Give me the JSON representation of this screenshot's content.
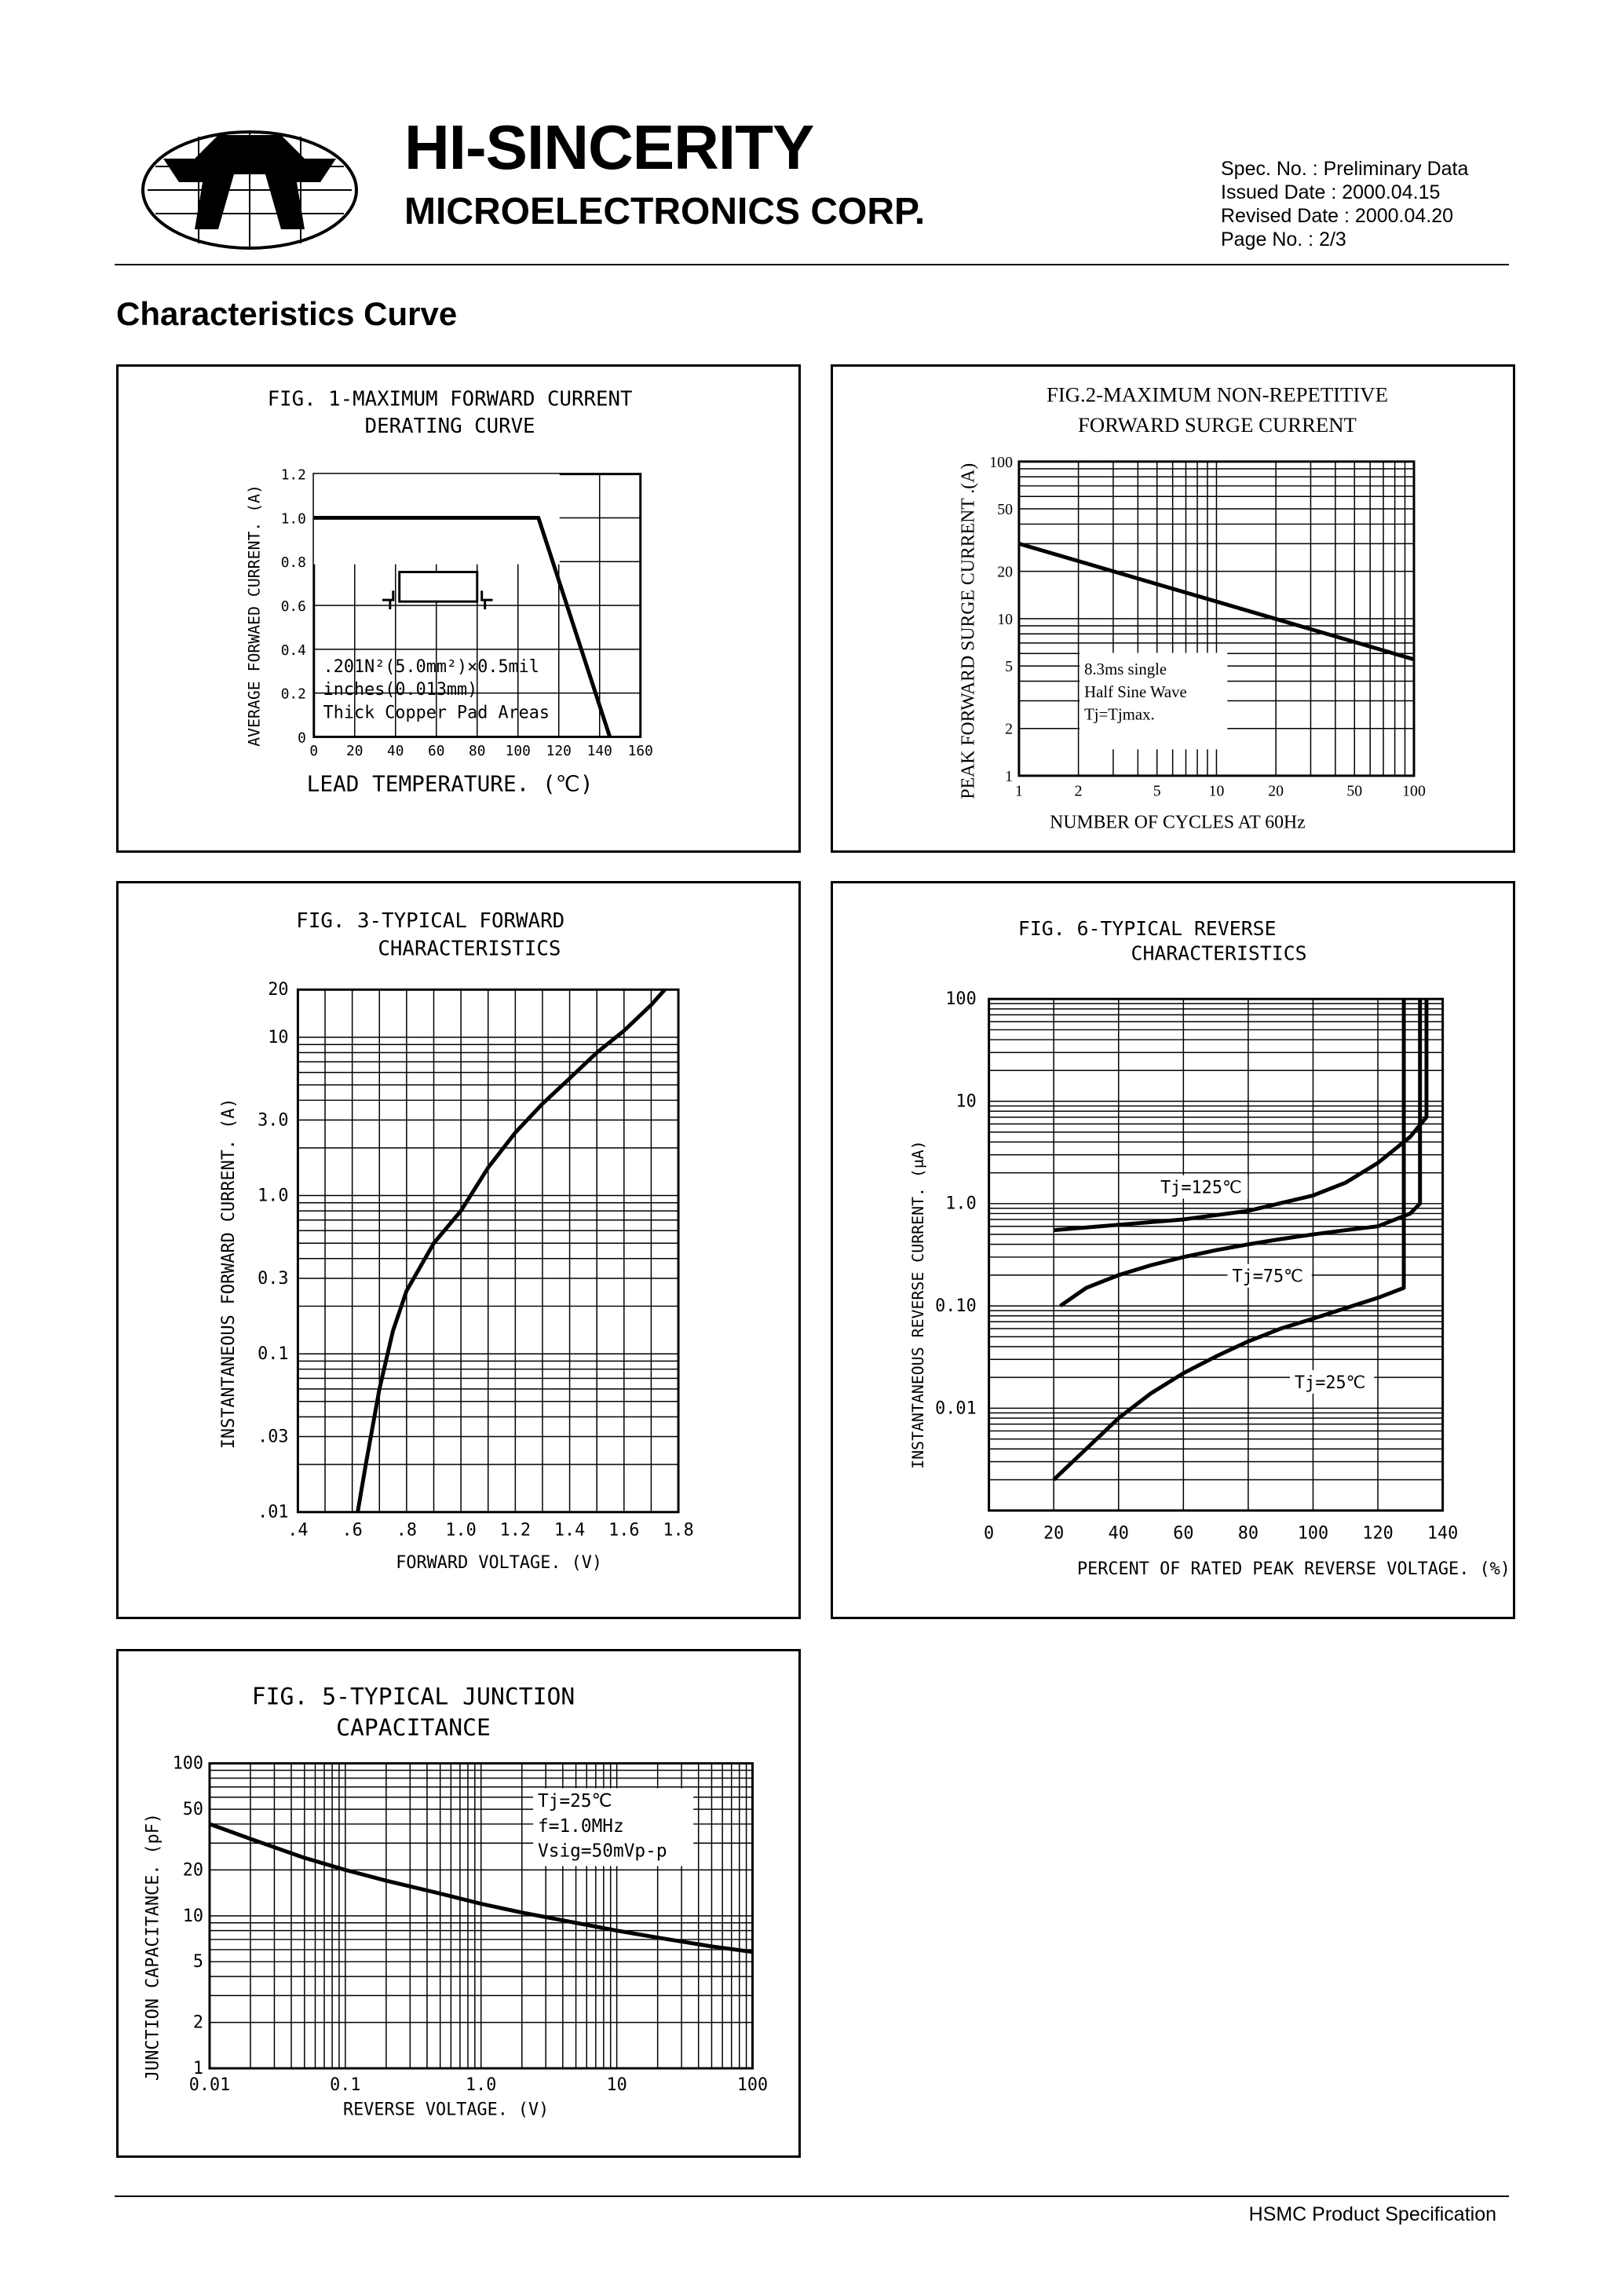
{
  "company": {
    "name": "HI-SINCERITY",
    "subtitle": "MICROELECTRONICS CORP."
  },
  "spec": {
    "spec_no": "Spec. No. : Preliminary Data",
    "issued": "Issued Date : 2000.04.15",
    "revised": "Revised Date : 2000.04.20",
    "page": "Page No. : 2/3"
  },
  "section_title": "Characteristics Curve",
  "footer": "HSMC Product Specification",
  "fig1": {
    "title1": "FIG. 1-MAXIMUM FORWARD CURRENT",
    "title2": "DERATING CURVE",
    "ylabel": "AVERAGE FORWAED CURRENT. (A)",
    "xlabel": "LEAD TEMPERATURE. (℃)",
    "note1": ".201N²(5.0mm²)×0.5mil",
    "note2": "inches(0.013mm)",
    "note3": "Thick Copper Pad Areas",
    "xticks": [
      "0",
      "20",
      "40",
      "60",
      "80",
      "100",
      "120",
      "140",
      "160"
    ],
    "yticks": [
      "0",
      "0.2",
      "0.4",
      "0.6",
      "0.8",
      "1.0",
      "1.2"
    ]
  },
  "fig2": {
    "title1": "FIG.2-MAXIMUM NON-REPETITIVE",
    "title2": "FORWARD SURGE CURRENT",
    "ylabel": "PEAK FORWARD SURGE CURRENT .(A)",
    "xlabel": "NUMBER OF CYCLES AT 60Hz",
    "note1": "8.3ms single",
    "note2": "Half Sine Wave",
    "note3": "Tj=Tjmax.",
    "xticks": [
      "1",
      "2",
      "5",
      "10",
      "20",
      "50",
      "100"
    ],
    "yticks": [
      "1",
      "2",
      "5",
      "10",
      "20",
      "50",
      "100"
    ]
  },
  "fig3": {
    "title1": "FIG. 3-TYPICAL FORWARD",
    "title2": "CHARACTERISTICS",
    "ylabel": "INSTANTANEOUS FORWARD CURRENT. (A)",
    "xlabel": "FORWARD VOLTAGE. (V)",
    "xticks": [
      ".4",
      ".6",
      ".8",
      "1.0",
      "1.2",
      "1.4",
      "1.6",
      "1.8"
    ],
    "yticks": [
      ".01",
      ".03",
      "0.1",
      "0.3",
      "1.0",
      "3.0",
      "10",
      "20"
    ]
  },
  "fig6": {
    "title1": "FIG. 6-TYPICAL REVERSE",
    "title2": "CHARACTERISTICS",
    "ylabel": "INSTANTANEOUS REVERSE CURRENT. (μA)",
    "xlabel": "PERCENT OF RATED PEAK REVERSE VOLTAGE. (%)",
    "xticks": [
      "0",
      "20",
      "40",
      "60",
      "80",
      "100",
      "120",
      "140"
    ],
    "yticks": [
      "0.01",
      "0.10",
      "1.0",
      "10",
      "100"
    ],
    "label125": "Tj=125℃",
    "label75": "Tj=75℃",
    "label25": "Tj=25℃"
  },
  "fig5": {
    "title1": "FIG. 5-TYPICAL JUNCTION",
    "title2": "CAPACITANCE",
    "ylabel": "JUNCTION CAPACITANCE. (pF)",
    "xlabel": "REVERSE VOLTAGE. (V)",
    "note1": "Tj=25℃",
    "note2": "f=1.0MHz",
    "note3": "Vsig=50mVp-p",
    "xticks": [
      "0.01",
      "0.1",
      "1.0",
      "10",
      "100"
    ],
    "yticks": [
      "1",
      "2",
      "5",
      "10",
      "20",
      "50",
      "100"
    ]
  },
  "chart_data": [
    {
      "type": "line",
      "title": "FIG. 1-MAXIMUM FORWARD CURRENT DERATING CURVE",
      "xlabel": "LEAD TEMPERATURE. (℃)",
      "ylabel": "AVERAGE FORWAED CURRENT. (A)",
      "xlim": [
        0,
        160
      ],
      "ylim": [
        0,
        1.2
      ],
      "grid": true,
      "series": [
        {
          "x": [
            0,
            110,
            145
          ],
          "y": [
            1.0,
            1.0,
            0.0
          ]
        }
      ]
    },
    {
      "type": "line",
      "title": "FIG.2-MAXIMUM NON-REPETITIVE FORWARD SURGE CURRENT",
      "xlabel": "NUMBER OF CYCLES AT 60Hz",
      "ylabel": "PEAK FORWARD SURGE CURRENT .(A)",
      "xlim": [
        1,
        100
      ],
      "ylim": [
        1,
        100
      ],
      "xscale": "log",
      "yscale": "log",
      "grid": true,
      "series": [
        {
          "x": [
            1,
            100
          ],
          "y": [
            30,
            5.5
          ]
        }
      ]
    },
    {
      "type": "line",
      "title": "FIG. 3-TYPICAL FORWARD CHARACTERISTICS",
      "xlabel": "FORWARD VOLTAGE. (V)",
      "ylabel": "INSTANTANEOUS FORWARD CURRENT. (A)",
      "xlim": [
        0.4,
        1.8
      ],
      "ylim": [
        0.01,
        20
      ],
      "yscale": "log",
      "grid": true,
      "series": [
        {
          "x": [
            0.62,
            0.65,
            0.7,
            0.75,
            0.8,
            0.9,
            1.0,
            1.1,
            1.2,
            1.3,
            1.4,
            1.5,
            1.6,
            1.7,
            1.75
          ],
          "y": [
            0.01,
            0.02,
            0.06,
            0.14,
            0.25,
            0.5,
            0.8,
            1.5,
            2.5,
            3.8,
            5.5,
            8,
            11,
            16,
            20
          ]
        }
      ]
    },
    {
      "type": "line",
      "title": "FIG. 6-TYPICAL REVERSE CHARACTERISTICS",
      "xlabel": "PERCENT OF RATED PEAK REVERSE VOLTAGE. (%)",
      "ylabel": "INSTANTANEOUS REVERSE CURRENT. (μA)",
      "xlim": [
        0,
        140
      ],
      "ylim": [
        0.001,
        100
      ],
      "yscale": "log",
      "grid": true,
      "series": [
        {
          "name": "Tj=125℃",
          "x": [
            20,
            40,
            60,
            80,
            100,
            110,
            120,
            130,
            135,
            135
          ],
          "y": [
            0.55,
            0.62,
            0.7,
            0.85,
            1.2,
            1.6,
            2.5,
            4.5,
            7,
            100
          ]
        },
        {
          "name": "Tj=75℃",
          "x": [
            22,
            30,
            40,
            50,
            60,
            70,
            80,
            90,
            100,
            110,
            120,
            130,
            133,
            133
          ],
          "y": [
            0.1,
            0.15,
            0.2,
            0.25,
            0.3,
            0.35,
            0.4,
            0.45,
            0.5,
            0.55,
            0.6,
            0.8,
            1.0,
            100
          ]
        },
        {
          "name": "Tj=25℃",
          "x": [
            20,
            30,
            40,
            50,
            60,
            70,
            80,
            90,
            100,
            110,
            120,
            128,
            128
          ],
          "y": [
            0.002,
            0.004,
            0.008,
            0.014,
            0.022,
            0.032,
            0.045,
            0.06,
            0.075,
            0.095,
            0.12,
            0.15,
            100
          ]
        }
      ]
    },
    {
      "type": "line",
      "title": "FIG. 5-TYPICAL JUNCTION CAPACITANCE",
      "xlabel": "REVERSE VOLTAGE. (V)",
      "ylabel": "JUNCTION CAPACITANCE. (pF)",
      "xlim": [
        0.01,
        100
      ],
      "ylim": [
        1,
        100
      ],
      "xscale": "log",
      "yscale": "log",
      "grid": true,
      "series": [
        {
          "x": [
            0.01,
            0.02,
            0.05,
            0.1,
            0.2,
            0.5,
            1,
            2,
            5,
            10,
            20,
            50,
            100
          ],
          "y": [
            40,
            32,
            24,
            20,
            17,
            14,
            12,
            10.5,
            9,
            8,
            7.2,
            6.3,
            5.8
          ]
        }
      ]
    }
  ]
}
